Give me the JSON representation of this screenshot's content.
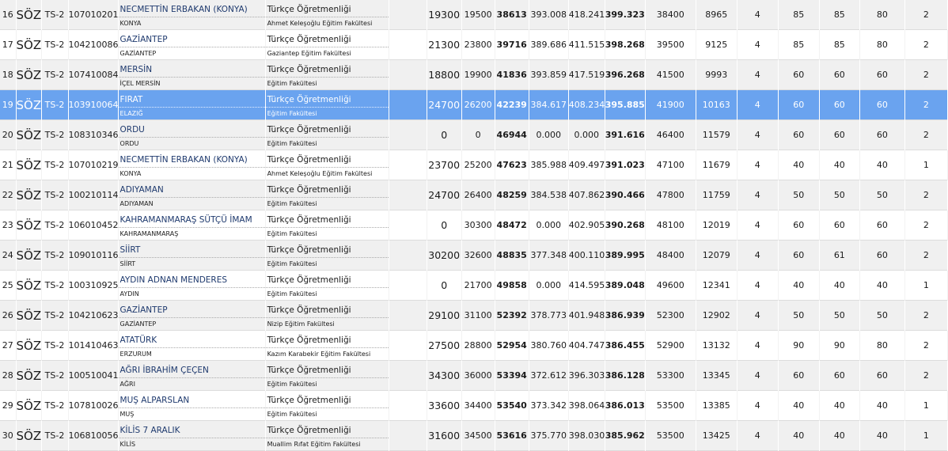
{
  "rows": [
    {
      "rank": "16",
      "puan_turu": "SÖZ",
      "ts": "TS-2",
      "code": "107010201",
      "uni": "NECMETTİN ERBAKAN (KONYA)",
      "city": "KONYA",
      "program": "Türkçe Öğretmenliği",
      "faculty": "Ahmet Keleşoğlu Eğitim Fakültesi",
      "s1": "19300",
      "s2": "19500",
      "s3": "38613",
      "p1": "393.008",
      "p2": "418.241",
      "p3": "399.323",
      "s4": "38400",
      "s5": "8965",
      "q1": "4",
      "q2": "85",
      "q3": "85",
      "q4": "80",
      "q5": "2"
    },
    {
      "rank": "17",
      "puan_turu": "SÖZ",
      "ts": "TS-2",
      "code": "104210086",
      "uni": "GAZİANTEP",
      "city": "GAZİANTEP",
      "program": "Türkçe Öğretmenliği",
      "faculty": "Gaziantep Eğitim Fakültesi",
      "s1": "21300",
      "s2": "23800",
      "s3": "39716",
      "p1": "389.686",
      "p2": "411.515",
      "p3": "398.268",
      "s4": "39500",
      "s5": "9125",
      "q1": "4",
      "q2": "85",
      "q3": "85",
      "q4": "80",
      "q5": "2"
    },
    {
      "rank": "18",
      "puan_turu": "SÖZ",
      "ts": "TS-2",
      "code": "107410084",
      "uni": "MERSİN",
      "city": "İÇEL MERSİN",
      "program": "Türkçe Öğretmenliği",
      "faculty": "Eğitim Fakültesi",
      "s1": "18800",
      "s2": "19900",
      "s3": "41836",
      "p1": "393.859",
      "p2": "417.519",
      "p3": "396.268",
      "s4": "41500",
      "s5": "9993",
      "q1": "4",
      "q2": "60",
      "q3": "60",
      "q4": "60",
      "q5": "2"
    },
    {
      "rank": "19",
      "puan_turu": "SÖZ",
      "ts": "TS-2",
      "code": "103910064",
      "uni": "FIRAT",
      "city": "ELAZIĞ",
      "program": "Türkçe Öğretmenliği",
      "faculty": "Eğitim Fakültesi",
      "s1": "24700",
      "s2": "26200",
      "s3": "42239",
      "p1": "384.617",
      "p2": "408.234",
      "p3": "395.885",
      "s4": "41900",
      "s5": "10163",
      "q1": "4",
      "q2": "60",
      "q3": "60",
      "q4": "60",
      "q5": "2",
      "selected": true
    },
    {
      "rank": "20",
      "puan_turu": "SÖZ",
      "ts": "TS-2",
      "code": "108310346",
      "uni": "ORDU",
      "city": "ORDU",
      "program": "Türkçe Öğretmenliği",
      "faculty": "Eğitim Fakültesi",
      "s1": "0",
      "s2": "0",
      "s3": "46944",
      "p1": "0.000",
      "p2": "0.000",
      "p3": "391.616",
      "s4": "46400",
      "s5": "11579",
      "q1": "4",
      "q2": "60",
      "q3": "60",
      "q4": "60",
      "q5": "2"
    },
    {
      "rank": "21",
      "puan_turu": "SÖZ",
      "ts": "TS-2",
      "code": "107010219",
      "uni": "NECMETTİN ERBAKAN (KONYA)",
      "city": "KONYA",
      "program": "Türkçe Öğretmenliği",
      "faculty": "Ahmet Keleşoğlu Eğitim Fakültesi",
      "s1": "23700",
      "s2": "25200",
      "s3": "47623",
      "p1": "385.988",
      "p2": "409.497",
      "p3": "391.023",
      "s4": "47100",
      "s5": "11679",
      "q1": "4",
      "q2": "40",
      "q3": "40",
      "q4": "40",
      "q5": "1"
    },
    {
      "rank": "22",
      "puan_turu": "SÖZ",
      "ts": "TS-2",
      "code": "100210114",
      "uni": "ADIYAMAN",
      "city": "ADIYAMAN",
      "program": "Türkçe Öğretmenliği",
      "faculty": "Eğitim Fakültesi",
      "s1": "24700",
      "s2": "26400",
      "s3": "48259",
      "p1": "384.538",
      "p2": "407.862",
      "p3": "390.466",
      "s4": "47800",
      "s5": "11759",
      "q1": "4",
      "q2": "50",
      "q3": "50",
      "q4": "50",
      "q5": "2"
    },
    {
      "rank": "23",
      "puan_turu": "SÖZ",
      "ts": "TS-2",
      "code": "106010452",
      "uni": "KAHRAMANMARAŞ SÜTÇÜ İMAM",
      "city": "KAHRAMANMARAŞ",
      "program": "Türkçe Öğretmenliği",
      "faculty": "Eğitim Fakültesi",
      "s1": "0",
      "s2": "30300",
      "s3": "48472",
      "p1": "0.000",
      "p2": "402.905",
      "p3": "390.268",
      "s4": "48100",
      "s5": "12019",
      "q1": "4",
      "q2": "60",
      "q3": "60",
      "q4": "60",
      "q5": "2"
    },
    {
      "rank": "24",
      "puan_turu": "SÖZ",
      "ts": "TS-2",
      "code": "109010116",
      "uni": "SİİRT",
      "city": "SİİRT",
      "program": "Türkçe Öğretmenliği",
      "faculty": "Eğitim Fakültesi",
      "s1": "30200",
      "s2": "32600",
      "s3": "48835",
      "p1": "377.348",
      "p2": "400.110",
      "p3": "389.995",
      "s4": "48400",
      "s5": "12079",
      "q1": "4",
      "q2": "60",
      "q3": "61",
      "q4": "60",
      "q5": "2"
    },
    {
      "rank": "25",
      "puan_turu": "SÖZ",
      "ts": "TS-2",
      "code": "100310925",
      "uni": "AYDIN ADNAN MENDERES",
      "city": "AYDIN",
      "program": "Türkçe Öğretmenliği",
      "faculty": "Eğitim Fakültesi",
      "s1": "0",
      "s2": "21700",
      "s3": "49858",
      "p1": "0.000",
      "p2": "414.595",
      "p3": "389.048",
      "s4": "49600",
      "s5": "12341",
      "q1": "4",
      "q2": "40",
      "q3": "40",
      "q4": "40",
      "q5": "1"
    },
    {
      "rank": "26",
      "puan_turu": "SÖZ",
      "ts": "TS-2",
      "code": "104210623",
      "uni": "GAZİANTEP",
      "city": "GAZİANTEP",
      "program": "Türkçe Öğretmenliği",
      "faculty": "Nizip Eğitim Fakültesi",
      "s1": "29100",
      "s2": "31100",
      "s3": "52392",
      "p1": "378.773",
      "p2": "401.948",
      "p3": "386.939",
      "s4": "52300",
      "s5": "12902",
      "q1": "4",
      "q2": "50",
      "q3": "50",
      "q4": "50",
      "q5": "2"
    },
    {
      "rank": "27",
      "puan_turu": "SÖZ",
      "ts": "TS-2",
      "code": "101410463",
      "uni": "ATATÜRK",
      "city": "ERZURUM",
      "program": "Türkçe Öğretmenliği",
      "faculty": "Kazım Karabekir Eğitim Fakültesi",
      "s1": "27500",
      "s2": "28800",
      "s3": "52954",
      "p1": "380.760",
      "p2": "404.747",
      "p3": "386.455",
      "s4": "52900",
      "s5": "13132",
      "q1": "4",
      "q2": "90",
      "q3": "90",
      "q4": "80",
      "q5": "2"
    },
    {
      "rank": "28",
      "puan_turu": "SÖZ",
      "ts": "TS-2",
      "code": "100510041",
      "uni": "AĞRI İBRAHİM ÇEÇEN",
      "city": "AĞRI",
      "program": "Türkçe Öğretmenliği",
      "faculty": "Eğitim Fakültesi",
      "s1": "34300",
      "s2": "36000",
      "s3": "53394",
      "p1": "372.612",
      "p2": "396.303",
      "p3": "386.128",
      "s4": "53300",
      "s5": "13345",
      "q1": "4",
      "q2": "60",
      "q3": "60",
      "q4": "60",
      "q5": "2"
    },
    {
      "rank": "29",
      "puan_turu": "SÖZ",
      "ts": "TS-2",
      "code": "107810026",
      "uni": "MUŞ ALPARSLAN",
      "city": "MUŞ",
      "program": "Türkçe Öğretmenliği",
      "faculty": "Eğitim Fakültesi",
      "s1": "33600",
      "s2": "34400",
      "s3": "53540",
      "p1": "373.342",
      "p2": "398.064",
      "p3": "386.013",
      "s4": "53500",
      "s5": "13385",
      "q1": "4",
      "q2": "40",
      "q3": "40",
      "q4": "40",
      "q5": "1"
    },
    {
      "rank": "30",
      "puan_turu": "SÖZ",
      "ts": "TS-2",
      "code": "106810056",
      "uni": "KİLİS 7 ARALIK",
      "city": "KİLİS",
      "program": "Türkçe Öğretmenliği",
      "faculty": "Muallim Rıfat Eğitim Fakültesi",
      "s1": "31600",
      "s2": "34500",
      "s3": "53616",
      "p1": "375.770",
      "p2": "398.030",
      "p3": "385.962",
      "s4": "53500",
      "s5": "13425",
      "q1": "4",
      "q2": "40",
      "q3": "40",
      "q4": "40",
      "q5": "1"
    }
  ]
}
